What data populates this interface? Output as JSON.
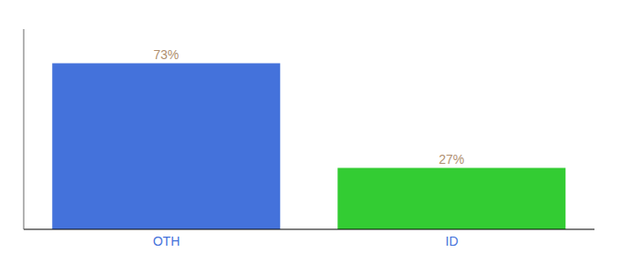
{
  "chart_data": {
    "type": "bar",
    "categories": [
      "OTH",
      "ID"
    ],
    "values": [
      73,
      27
    ],
    "value_labels": [
      "73%",
      "27%"
    ],
    "colors": [
      "#4472db",
      "#33cc33"
    ],
    "ylim": [
      0,
      88
    ],
    "tick_labels": "x",
    "data_labels": true,
    "grid": false
  }
}
